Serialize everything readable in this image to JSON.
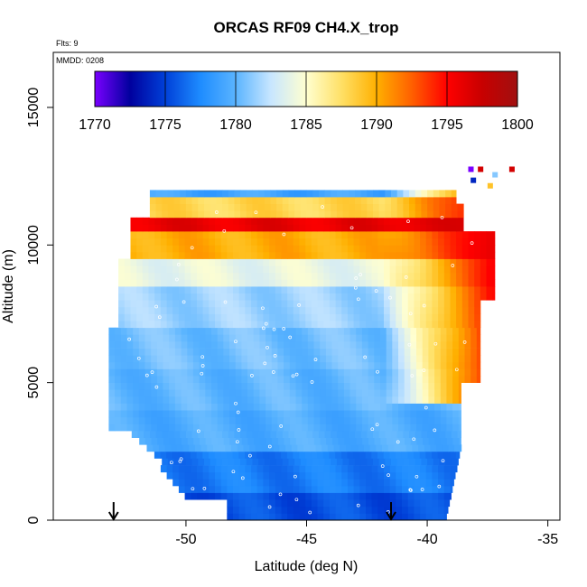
{
  "chart_data": {
    "type": "heatmap",
    "title": "ORCAS RF09 CH4.X_trop",
    "annotations": {
      "flights": "Flts: 9",
      "date": "MMDD: 0208"
    },
    "xlabel": "Latitude (deg N)",
    "ylabel": "Altitude (m)",
    "xlim": [
      -55.5,
      -34.5
    ],
    "ylim": [
      0,
      17000
    ],
    "xticks": [
      -50,
      -45,
      -40,
      -35
    ],
    "yticks": [
      0,
      5000,
      10000,
      15000
    ],
    "colorbar": {
      "ticks": [
        1770,
        1775,
        1780,
        1785,
        1790,
        1795,
        1800
      ],
      "range": [
        1770,
        1800
      ],
      "placement": "top-inside",
      "stops": [
        "#7a00ff",
        "#00009e",
        "#0040d8",
        "#1e8cff",
        "#5ab4ff",
        "#c8e6ff",
        "#ffffd0",
        "#ffe066",
        "#ffb000",
        "#ff6000",
        "#ff0000",
        "#c80000",
        "#a01010"
      ]
    },
    "markers": [
      {
        "type": "down-arrow",
        "x": -53.0,
        "y": 0
      },
      {
        "type": "down-arrow",
        "x": -41.5,
        "y": 0
      }
    ],
    "field": {
      "altitude_bands": [
        {
          "y0": 0,
          "y1": 1000,
          "value": 1775.5
        },
        {
          "y0": 1000,
          "y1": 2500,
          "value": 1777
        },
        {
          "y0": 2500,
          "y1": 4000,
          "value": 1779.5
        },
        {
          "y0": 4000,
          "y1": 5500,
          "value": 1780
        },
        {
          "y0": 5500,
          "y1": 7000,
          "value": 1780.5
        },
        {
          "y0": 7000,
          "y1": 8500,
          "value": 1781.5
        },
        {
          "y0": 8500,
          "y1": 9500,
          "value": 1784
        },
        {
          "y0": 9500,
          "y1": 10500,
          "value": 1790
        },
        {
          "y0": 10500,
          "y1": 11000,
          "value": 1796
        },
        {
          "y0": 11000,
          "y1": 11700,
          "value": 1788
        },
        {
          "y0": 11700,
          "y1": 12100,
          "value": 1779
        }
      ],
      "northern_edge": {
        "lat_start": -42,
        "lat_end": -37.5,
        "value": 1797
      }
    }
  }
}
